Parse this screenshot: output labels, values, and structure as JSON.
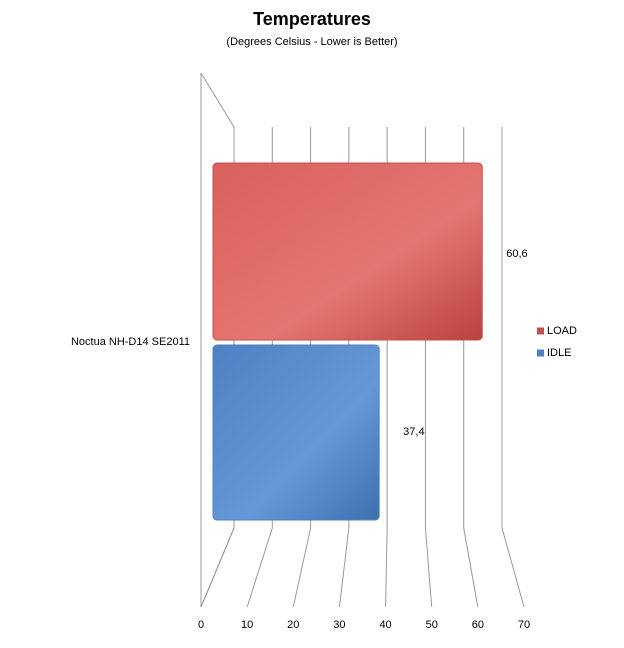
{
  "chart_data": {
    "type": "bar",
    "title": "Temperatures",
    "subtitle": "(Degrees Celsius - Lower is Better)",
    "orientation": "horizontal",
    "categories": [
      "Noctua NH-D14 SE2011"
    ],
    "series": [
      {
        "name": "LOAD",
        "color": "#c0504d",
        "values": [
          60.6
        ],
        "value_labels": [
          "60,6"
        ]
      },
      {
        "name": "IDLE",
        "color": "#4f81bd",
        "values": [
          37.4
        ],
        "value_labels": [
          "37,4"
        ]
      }
    ],
    "xlim": [
      0,
      70
    ],
    "xticks": [
      0,
      10,
      20,
      30,
      40,
      50,
      60,
      70
    ],
    "grid": true,
    "legend": "right"
  }
}
